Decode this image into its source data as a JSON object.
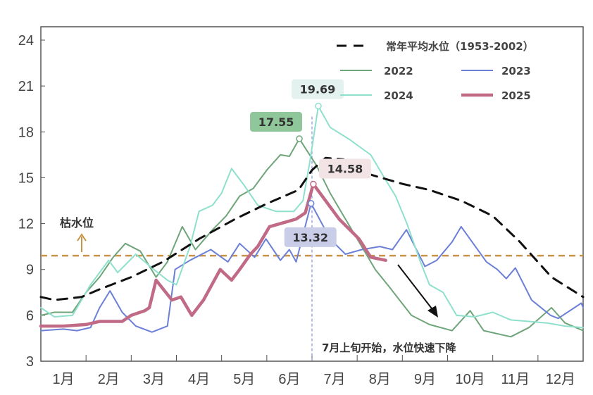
{
  "chart_data": {
    "type": "line",
    "title": "",
    "xlabel": "",
    "ylabel": "",
    "ylim": [
      3,
      24
    ],
    "yticks": [
      "3",
      "6",
      "9",
      "12",
      "15",
      "18",
      "21",
      "24"
    ],
    "ytick_values": [
      3,
      6,
      9,
      12,
      15,
      18,
      21,
      24
    ],
    "xlim": [
      0,
      12
    ],
    "months": [
      "1月",
      "2月",
      "3月",
      "4月",
      "5月",
      "6月",
      "7月",
      "8月",
      "9月",
      "10月",
      "11月",
      "12月"
    ],
    "x_unit": "months since Jan 1",
    "legend_position": "top-right",
    "series": [
      {
        "name": "常年平均水位（1953-2002）",
        "color": "#111111",
        "dash": true,
        "width": 3,
        "points": [
          [
            0,
            7.2
          ],
          [
            0.3,
            7.0
          ],
          [
            0.9,
            7.2
          ],
          [
            1.3,
            7.7
          ],
          [
            2,
            8.5
          ],
          [
            2.7,
            9.5
          ],
          [
            3.5,
            11
          ],
          [
            4.3,
            12.3
          ],
          [
            5,
            13.3
          ],
          [
            5.7,
            14.2
          ],
          [
            6.0,
            15.5
          ],
          [
            6.3,
            16.3
          ],
          [
            6.7,
            16.2
          ],
          [
            7.3,
            15.2
          ],
          [
            8,
            14.6
          ],
          [
            8.6,
            14.2
          ],
          [
            9.3,
            13.5
          ],
          [
            10,
            12.5
          ],
          [
            10.6,
            10.8
          ],
          [
            11.3,
            8.5
          ],
          [
            12,
            7.2
          ]
        ]
      },
      {
        "name": "2022",
        "color": "#6fa57a",
        "width": 2,
        "points": [
          [
            0,
            6.0
          ],
          [
            0.3,
            6.2
          ],
          [
            0.7,
            6.2
          ],
          [
            1.0,
            7.5
          ],
          [
            1.3,
            8.5
          ],
          [
            1.6,
            9.8
          ],
          [
            1.87,
            10.7
          ],
          [
            2.2,
            10.2
          ],
          [
            2.55,
            8.5
          ],
          [
            2.8,
            9.5
          ],
          [
            3.13,
            11.8
          ],
          [
            3.42,
            10.3
          ],
          [
            3.8,
            11.6
          ],
          [
            4.1,
            12.5
          ],
          [
            4.4,
            13.8
          ],
          [
            4.7,
            14.3
          ],
          [
            5.0,
            15.5
          ],
          [
            5.3,
            16.5
          ],
          [
            5.5,
            16.4
          ],
          [
            5.72,
            17.55
          ],
          [
            6.1,
            15.8
          ],
          [
            6.4,
            14
          ],
          [
            6.7,
            12.5
          ],
          [
            7.0,
            11
          ],
          [
            7.4,
            9.0
          ],
          [
            7.7,
            7.9
          ],
          [
            8.2,
            6.0
          ],
          [
            8.6,
            5.4
          ],
          [
            9.1,
            5.0
          ],
          [
            9.5,
            6.3
          ],
          [
            9.8,
            5.0
          ],
          [
            10.4,
            4.6
          ],
          [
            10.8,
            5.2
          ],
          [
            11.3,
            6.5
          ],
          [
            11.6,
            5.5
          ],
          [
            12,
            5.0
          ]
        ]
      },
      {
        "name": "2023",
        "color": "#6b7fd6",
        "width": 2,
        "points": [
          [
            0,
            5.0
          ],
          [
            0.5,
            5.1
          ],
          [
            0.8,
            5.0
          ],
          [
            1.1,
            5.2
          ],
          [
            1.3,
            6.5
          ],
          [
            1.53,
            7.6
          ],
          [
            1.8,
            6.2
          ],
          [
            2.1,
            5.3
          ],
          [
            2.46,
            4.9
          ],
          [
            2.8,
            5.3
          ],
          [
            2.97,
            9.0
          ],
          [
            3.3,
            9.6
          ],
          [
            3.76,
            10.3
          ],
          [
            4.14,
            9.5
          ],
          [
            4.4,
            10.7
          ],
          [
            4.73,
            9.8
          ],
          [
            4.98,
            11.0
          ],
          [
            5.3,
            9.6
          ],
          [
            5.5,
            10.3
          ],
          [
            5.65,
            9.5
          ],
          [
            5.98,
            13.32
          ],
          [
            6.4,
            11
          ],
          [
            6.74,
            10.0
          ],
          [
            7.1,
            10.3
          ],
          [
            7.5,
            10.5
          ],
          [
            7.78,
            10.3
          ],
          [
            8.09,
            11.6
          ],
          [
            8.5,
            9.2
          ],
          [
            8.76,
            9.6
          ],
          [
            9.1,
            10.8
          ],
          [
            9.3,
            11.8
          ],
          [
            9.86,
            9.5
          ],
          [
            10.1,
            9.0
          ],
          [
            10.3,
            8.4
          ],
          [
            10.5,
            9.1
          ],
          [
            10.86,
            7.0
          ],
          [
            11.28,
            6.0
          ],
          [
            11.45,
            5.8
          ],
          [
            11.96,
            6.8
          ],
          [
            12,
            6.5
          ]
        ]
      },
      {
        "name": "2024",
        "color": "#8ee0cc",
        "width": 2,
        "points": [
          [
            0,
            6.5
          ],
          [
            0.3,
            5.9
          ],
          [
            0.7,
            6.0
          ],
          [
            1.1,
            8
          ],
          [
            1.5,
            9.6
          ],
          [
            1.7,
            8.8
          ],
          [
            2.1,
            10.0
          ],
          [
            2.5,
            9
          ],
          [
            2.8,
            8.3
          ],
          [
            3.0,
            8.0
          ],
          [
            3.3,
            10.5
          ],
          [
            3.5,
            12.8
          ],
          [
            3.8,
            13.2
          ],
          [
            4.0,
            14
          ],
          [
            4.22,
            15.6
          ],
          [
            4.5,
            14.5
          ],
          [
            4.8,
            13.2
          ],
          [
            5.2,
            12.8
          ],
          [
            5.6,
            12.8
          ],
          [
            5.8,
            13.5
          ],
          [
            5.95,
            16
          ],
          [
            6.14,
            19.69
          ],
          [
            6.4,
            18.3
          ],
          [
            6.83,
            17.5
          ],
          [
            7.3,
            16.5
          ],
          [
            7.6,
            15.0
          ],
          [
            7.85,
            13.8
          ],
          [
            8.1,
            12
          ],
          [
            8.4,
            9.5
          ],
          [
            8.6,
            8.0
          ],
          [
            8.9,
            7.5
          ],
          [
            9.2,
            6.0
          ],
          [
            9.6,
            5.9
          ],
          [
            10,
            6.2
          ],
          [
            10.4,
            5.7
          ],
          [
            10.8,
            5.6
          ],
          [
            11.2,
            5.5
          ],
          [
            11.6,
            5.3
          ],
          [
            12,
            5.2
          ]
        ]
      },
      {
        "name": "2025",
        "color": "#c06a86",
        "width": 4.5,
        "points": [
          [
            0,
            5.3
          ],
          [
            0.5,
            5.3
          ],
          [
            1,
            5.4
          ],
          [
            1.3,
            5.6
          ],
          [
            1.8,
            5.6
          ],
          [
            2.0,
            6.0
          ],
          [
            2.3,
            6.3
          ],
          [
            2.4,
            6.5
          ],
          [
            2.55,
            8.3
          ],
          [
            2.9,
            7.0
          ],
          [
            3.1,
            7.2
          ],
          [
            3.34,
            6.0
          ],
          [
            3.6,
            7.0
          ],
          [
            3.97,
            9.0
          ],
          [
            4.22,
            8.3
          ],
          [
            4.4,
            9.0
          ],
          [
            4.64,
            10.0
          ],
          [
            4.8,
            10.5
          ],
          [
            5.06,
            11.8
          ],
          [
            5.3,
            12.0
          ],
          [
            5.65,
            12.3
          ],
          [
            5.85,
            12.7
          ],
          [
            6.03,
            14.58
          ],
          [
            6.3,
            13.5
          ],
          [
            6.6,
            12.3
          ],
          [
            7.04,
            11.0
          ],
          [
            7.3,
            9.8
          ],
          [
            7.63,
            9.6
          ]
        ]
      }
    ],
    "reference_line": {
      "label": "枯水位",
      "value": 9.9,
      "color": "#c8944a"
    },
    "peak_labels": [
      {
        "text": "17.55",
        "x": 5.72,
        "y": 17.55,
        "series": "2022"
      },
      {
        "text": "19.69",
        "x": 6.14,
        "y": 19.69,
        "series": "2024"
      },
      {
        "text": "14.58",
        "x": 6.03,
        "y": 14.58,
        "series": "2025"
      },
      {
        "text": "13.32",
        "x": 5.98,
        "y": 13.32,
        "series": "2023"
      }
    ],
    "annotation": "7月上旬开始，水位快速下降",
    "vertical_marker_x": 6.0
  }
}
